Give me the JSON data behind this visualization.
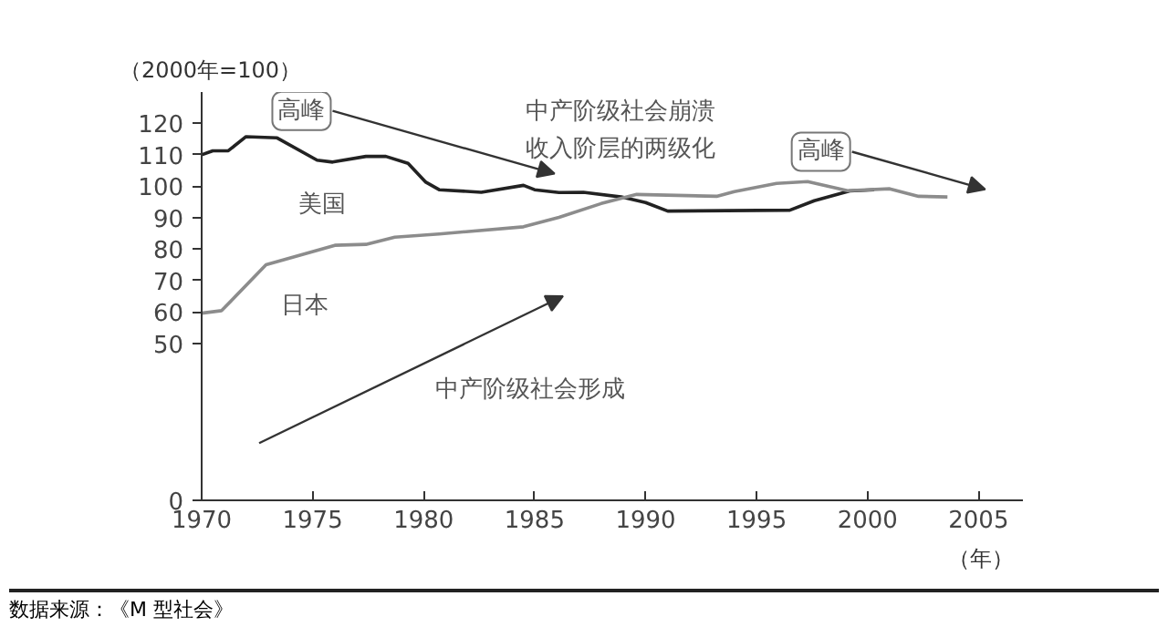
{
  "chart_data": {
    "type": "line",
    "ylabel": "（2000年=100）",
    "xlabel": "（年）",
    "xlim": [
      1970,
      2007
    ],
    "xticks": [
      1970,
      1975,
      1980,
      1985,
      1990,
      1995,
      2000,
      2005
    ],
    "ylim": [
      0,
      130
    ],
    "yticks": [
      0,
      50,
      60,
      70,
      80,
      90,
      100,
      110,
      120
    ],
    "grid": false,
    "legend": false,
    "series": [
      {
        "name": "美国",
        "color": "#222222",
        "x": [
          1970,
          1970.5,
          1971.2,
          1972,
          1973.4,
          1975.2,
          1975.9,
          1977.4,
          1978.3,
          1979.3,
          1980.1,
          1980.7,
          1982.6,
          1984.5,
          1985,
          1986.1,
          1987.2,
          1988.9,
          1990,
          1991,
          1996.5,
          1997.6,
          1999.2,
          2000.3
        ],
        "values": [
          110,
          111.3,
          111.3,
          115.8,
          115.4,
          108.3,
          107.7,
          109.5,
          109.5,
          107.3,
          101.3,
          98.9,
          98.1,
          100.3,
          98.9,
          98,
          98.1,
          96.6,
          94.8,
          92.1,
          92.4,
          95.4,
          98.5,
          98.9
        ]
      },
      {
        "name": "日本",
        "color": "#8c8c8c",
        "x": [
          1970,
          1970.9,
          1972.9,
          1976,
          1977.4,
          1978.7,
          1980.7,
          1984.5,
          1986.1,
          1988,
          1989.6,
          1993.2,
          1994,
          1995.9,
          1997.3,
          1999.1,
          2001,
          2002.3,
          2003.6
        ],
        "values": [
          59.6,
          60.4,
          75,
          81.2,
          81.5,
          83.8,
          84.8,
          87.1,
          90.1,
          94.5,
          97.4,
          96.8,
          98.3,
          100.9,
          101.5,
          98.6,
          99.2,
          96.8,
          96.6
        ]
      }
    ],
    "annotations": [
      {
        "text": "高峰",
        "x": 1974.5,
        "y": 124
      },
      {
        "text": "高峰",
        "x": 1997.9,
        "y": 111
      },
      "中产阶级社会崩溃",
      "收入阶层的两级化",
      "中产阶级社会形成",
      "数据来源：《M 型社会》"
    ]
  }
}
